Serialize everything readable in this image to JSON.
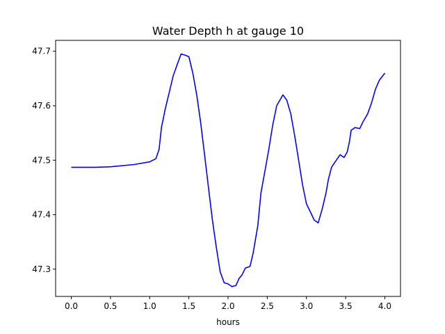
{
  "chart_data": {
    "type": "line",
    "title": "Water Depth h at gauge 10",
    "xlabel": "hours",
    "ylabel": "",
    "xlim": [
      -0.2,
      4.2
    ],
    "ylim": [
      47.25,
      47.72
    ],
    "xticks": [
      {
        "value": 0.0,
        "label": "0.0"
      },
      {
        "value": 0.5,
        "label": "0.5"
      },
      {
        "value": 1.0,
        "label": "1.0"
      },
      {
        "value": 1.5,
        "label": "1.5"
      },
      {
        "value": 2.0,
        "label": "2.0"
      },
      {
        "value": 2.5,
        "label": "2.5"
      },
      {
        "value": 3.0,
        "label": "3.0"
      },
      {
        "value": 3.5,
        "label": "3.5"
      },
      {
        "value": 4.0,
        "label": "4.0"
      }
    ],
    "yticks": [
      {
        "value": 47.3,
        "label": "47.3"
      },
      {
        "value": 47.4,
        "label": "47.4"
      },
      {
        "value": 47.5,
        "label": "47.5"
      },
      {
        "value": 47.6,
        "label": "47.6"
      },
      {
        "value": 47.7,
        "label": "47.7"
      }
    ],
    "grid": false,
    "series": [
      {
        "color": "#0000ff",
        "x": [
          0.0,
          0.3,
          0.5,
          0.8,
          1.0,
          1.08,
          1.12,
          1.15,
          1.2,
          1.25,
          1.3,
          1.35,
          1.4,
          1.45,
          1.5,
          1.55,
          1.6,
          1.65,
          1.7,
          1.75,
          1.8,
          1.85,
          1.9,
          1.95,
          2.0,
          2.05,
          2.1,
          2.14,
          2.18,
          2.22,
          2.28,
          2.32,
          2.38,
          2.42,
          2.47,
          2.52,
          2.57,
          2.62,
          2.66,
          2.7,
          2.75,
          2.8,
          2.85,
          2.9,
          2.95,
          3.0,
          3.05,
          3.1,
          3.15,
          3.2,
          3.25,
          3.28,
          3.32,
          3.38,
          3.43,
          3.48,
          3.52,
          3.55,
          3.57,
          3.62,
          3.68,
          3.72,
          3.78,
          3.83,
          3.88,
          3.93,
          4.0
        ],
        "y": [
          47.487,
          47.487,
          47.488,
          47.492,
          47.497,
          47.503,
          47.52,
          47.56,
          47.595,
          47.625,
          47.655,
          47.675,
          47.695,
          47.693,
          47.69,
          47.66,
          47.62,
          47.57,
          47.51,
          47.45,
          47.39,
          47.34,
          47.295,
          47.275,
          47.273,
          47.268,
          47.27,
          47.283,
          47.29,
          47.302,
          47.305,
          47.33,
          47.38,
          47.44,
          47.48,
          47.52,
          47.565,
          47.6,
          47.61,
          47.62,
          47.61,
          47.585,
          47.545,
          47.5,
          47.455,
          47.42,
          47.405,
          47.39,
          47.385,
          47.41,
          47.44,
          47.465,
          47.487,
          47.5,
          47.51,
          47.505,
          47.515,
          47.535,
          47.555,
          47.56,
          47.558,
          47.57,
          47.585,
          47.605,
          47.63,
          47.647,
          47.66
        ]
      }
    ]
  }
}
